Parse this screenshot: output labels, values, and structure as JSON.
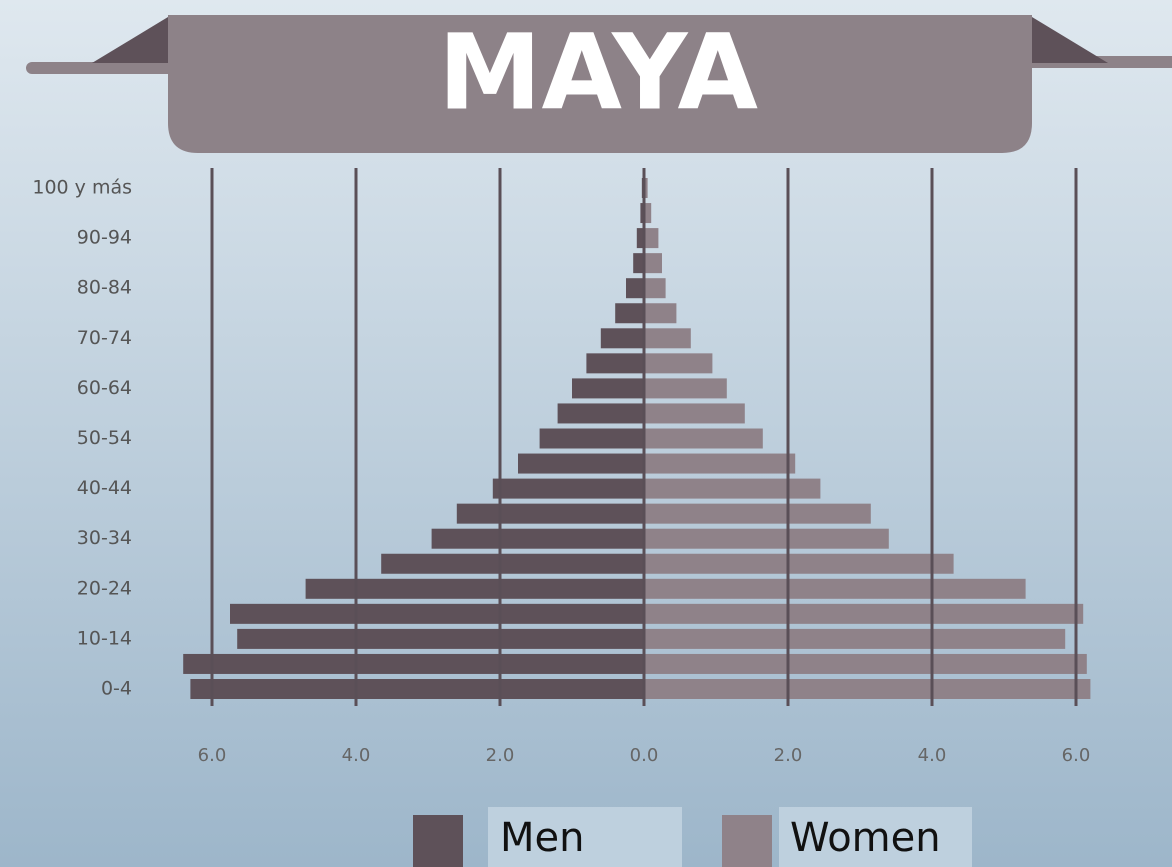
{
  "chart_data": {
    "type": "pyramid",
    "title": "MAYA",
    "categories": [
      "0-4",
      null,
      "10-14",
      null,
      "20-24",
      null,
      "30-34",
      null,
      "40-44",
      null,
      "50-54",
      null,
      "60-64",
      null,
      "70-74",
      null,
      "80-84",
      null,
      "90-94",
      null,
      "100 y más"
    ],
    "series": [
      {
        "name": "Men",
        "color": "#5e5159",
        "values": [
          -6.3,
          -6.4,
          -5.65,
          -5.75,
          -4.7,
          -3.65,
          -2.95,
          -2.6,
          -2.1,
          -1.75,
          -1.45,
          -1.2,
          -1.0,
          -0.8,
          -0.6,
          -0.4,
          -0.25,
          -0.15,
          -0.1,
          -0.05,
          -0.03
        ]
      },
      {
        "name": "Women",
        "color": "#8f8289",
        "values": [
          6.2,
          6.15,
          5.85,
          6.1,
          5.3,
          4.3,
          3.4,
          3.15,
          2.45,
          2.1,
          1.65,
          1.4,
          1.15,
          0.95,
          0.65,
          0.45,
          0.3,
          0.25,
          0.2,
          0.1,
          0.05
        ]
      }
    ],
    "xlim": [
      -6.5,
      6.5
    ],
    "xticks": [
      {
        "value": -6,
        "label": "6.0"
      },
      {
        "value": -4,
        "label": "4.0"
      },
      {
        "value": -2,
        "label": "2.0"
      },
      {
        "value": 0,
        "label": "0.0"
      },
      {
        "value": 2,
        "label": "2.0"
      },
      {
        "value": 4,
        "label": "4.0"
      },
      {
        "value": 6,
        "label": "6.0"
      }
    ],
    "grid": true
  }
}
